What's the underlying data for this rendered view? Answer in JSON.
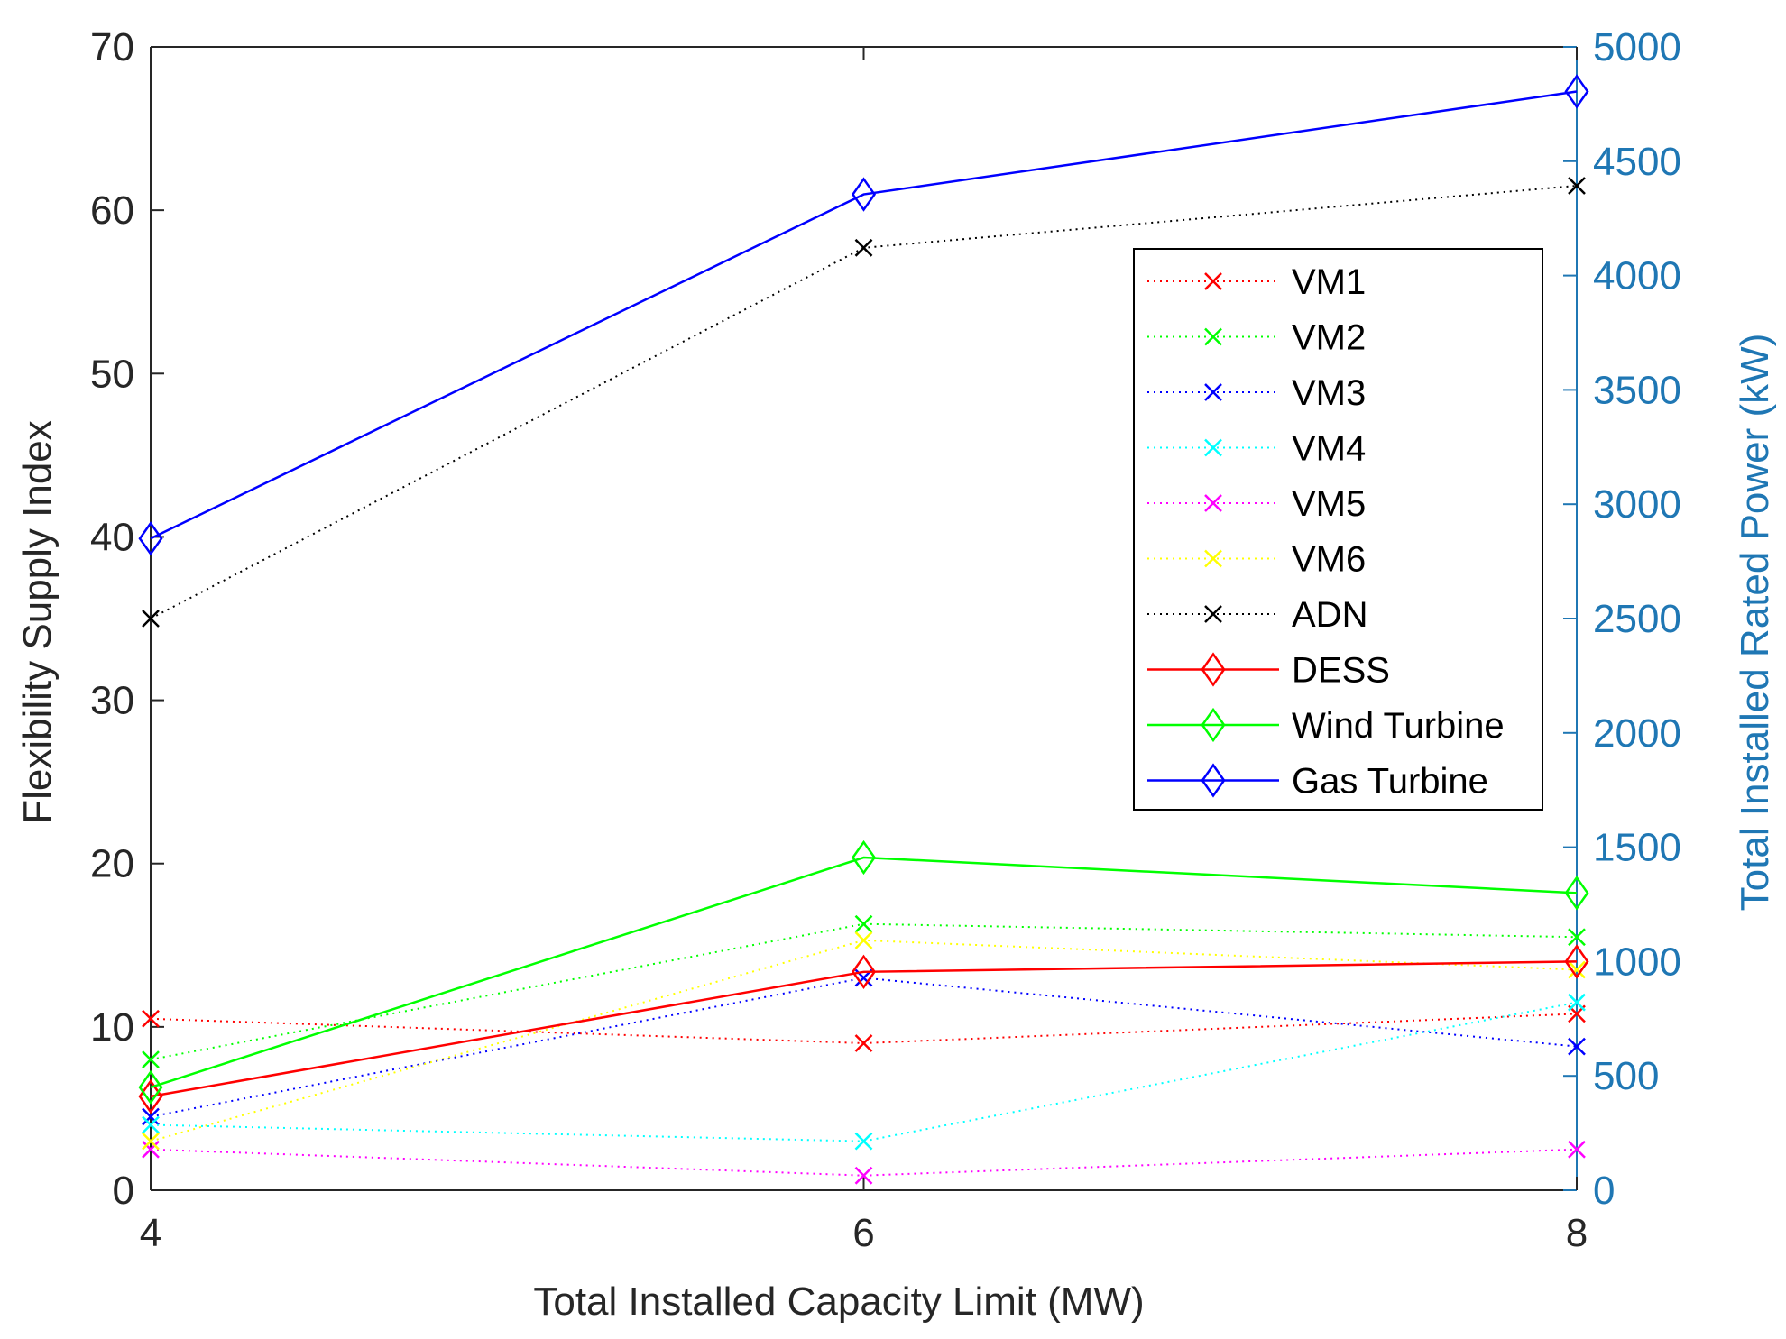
{
  "chart_data": {
    "type": "line",
    "x": [
      4,
      6,
      8
    ],
    "xlabel": "Total Installed Capacity Limit (MW)",
    "ylabel_left": "Flexibility Supply Index",
    "ylabel_right": "Total Installed Rated Power (kW)",
    "xlim": [
      4,
      8
    ],
    "ylim_left": [
      0,
      70
    ],
    "ylim_right": [
      0,
      5000
    ],
    "xticks": [
      "4",
      "6",
      "8"
    ],
    "yticks_left": [
      "0",
      "10",
      "20",
      "30",
      "40",
      "50",
      "60",
      "70"
    ],
    "yticks_right": [
      "0",
      "500",
      "1000",
      "1500",
      "2000",
      "2500",
      "3000",
      "3500",
      "4000",
      "4500",
      "5000"
    ],
    "grid": false,
    "legend_position": "upper-right",
    "right_axis_color": "#1f77b4",
    "series": [
      {
        "name": "VM1",
        "axis": "left",
        "color": "#ff0000",
        "style": "dotted",
        "marker": "x",
        "values": [
          10.5,
          9.0,
          10.8
        ]
      },
      {
        "name": "VM2",
        "axis": "left",
        "color": "#00ff00",
        "style": "dotted",
        "marker": "x",
        "values": [
          8.0,
          16.3,
          15.5
        ]
      },
      {
        "name": "VM3",
        "axis": "left",
        "color": "#0000ff",
        "style": "dotted",
        "marker": "x",
        "values": [
          4.5,
          13.0,
          8.8
        ]
      },
      {
        "name": "VM4",
        "axis": "left",
        "color": "#00ffff",
        "style": "dotted",
        "marker": "x",
        "values": [
          4.0,
          3.0,
          11.5
        ]
      },
      {
        "name": "VM5",
        "axis": "left",
        "color": "#ff00ff",
        "style": "dotted",
        "marker": "x",
        "values": [
          2.5,
          0.9,
          2.5
        ]
      },
      {
        "name": "VM6",
        "axis": "left",
        "color": "#ffff00",
        "style": "dotted",
        "marker": "x",
        "values": [
          3.0,
          15.3,
          13.5
        ]
      },
      {
        "name": "ADN",
        "axis": "left",
        "color": "#000000",
        "style": "dotted",
        "marker": "x",
        "values": [
          35.0,
          57.7,
          61.5
        ]
      },
      {
        "name": "DESS",
        "axis": "right",
        "color": "#ff0000",
        "style": "solid",
        "marker": "diamond",
        "values": [
          410,
          955,
          1000
        ]
      },
      {
        "name": "Wind Turbine",
        "axis": "right",
        "color": "#00ff00",
        "style": "solid",
        "marker": "diamond",
        "values": [
          450,
          1455,
          1300
        ]
      },
      {
        "name": "Gas Turbine",
        "axis": "right",
        "color": "#0000ff",
        "style": "solid",
        "marker": "diamond",
        "values": [
          2850,
          4355,
          4805
        ]
      }
    ]
  }
}
